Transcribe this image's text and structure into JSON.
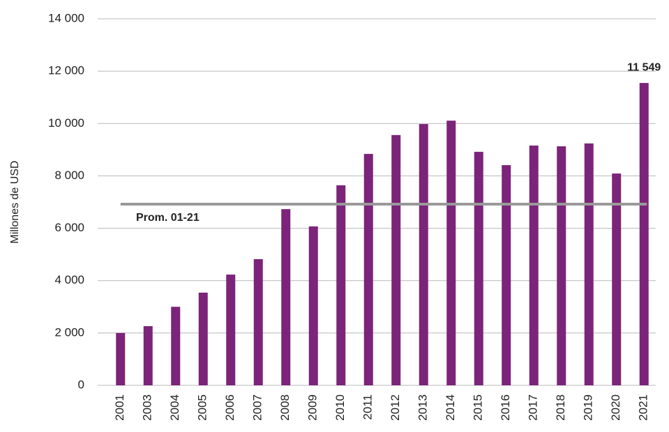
{
  "chart_data": {
    "type": "bar",
    "ylabel": "Millones de USD",
    "categories": [
      "2001",
      "2003",
      "2004",
      "2005",
      "2006",
      "2007",
      "2008",
      "2009",
      "2010",
      "2011",
      "2012",
      "2013",
      "2014",
      "2015",
      "2016",
      "2017",
      "2018",
      "2019",
      "2020",
      "2021"
    ],
    "values": [
      2000,
      2260,
      3000,
      3540,
      4230,
      4820,
      6730,
      6070,
      7640,
      8840,
      9560,
      9980,
      10110,
      8920,
      8410,
      9160,
      9130,
      9240,
      8090,
      11549
    ],
    "value_labels": [
      null,
      null,
      null,
      null,
      null,
      null,
      null,
      null,
      null,
      null,
      null,
      null,
      null,
      null,
      null,
      null,
      null,
      null,
      null,
      "11 549"
    ],
    "color": "#7b2479",
    "ylim": [
      0,
      14000
    ],
    "yticks": [
      0,
      {
        "value": 2000,
        "label": "2 000"
      },
      {
        "value": 4000,
        "label": "4 000"
      },
      {
        "value": 6000,
        "label": "6 000"
      },
      {
        "value": 8000,
        "label": "8 000"
      },
      {
        "value": 10000,
        "label": "10 000"
      },
      {
        "value": 12000,
        "label": "12 000"
      },
      {
        "value": 14000,
        "label": "14 000"
      }
    ],
    "grid": true,
    "average": {
      "label": "Prom. 01-21",
      "value": 6920,
      "color": "#999999"
    }
  }
}
